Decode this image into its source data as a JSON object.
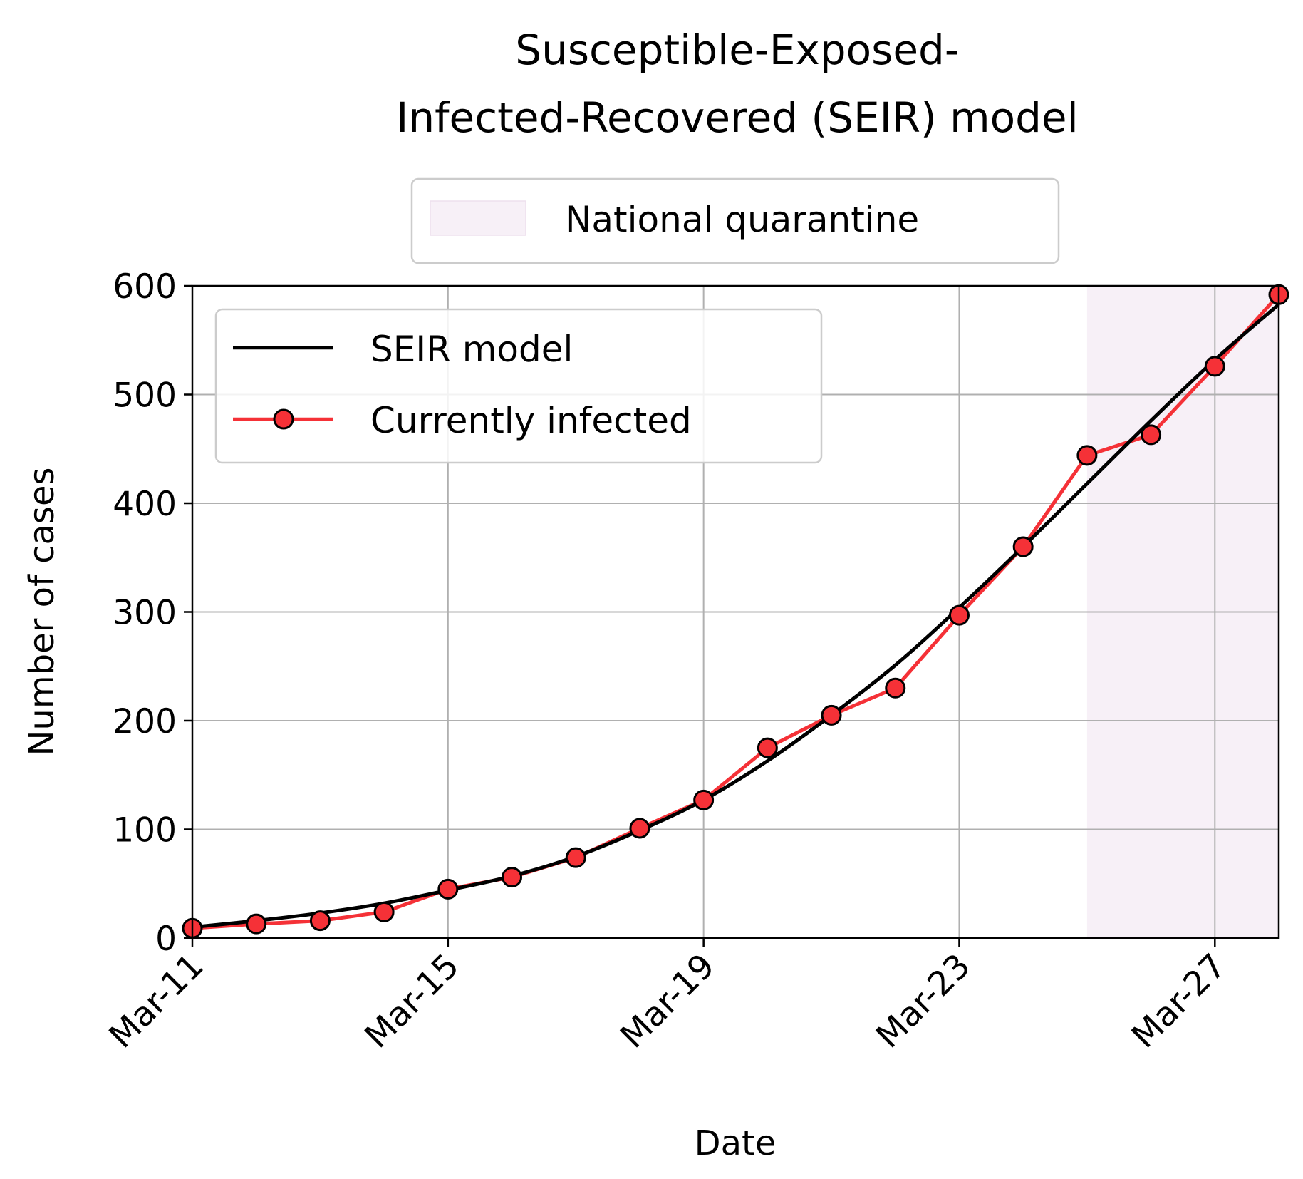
{
  "chart_data": {
    "type": "line",
    "title_line1": "Susceptible-Exposed-",
    "title_line2": "Infected-Recovered (SEIR) model",
    "xlabel": "Date",
    "ylabel": "Number of cases",
    "ylim": [
      0,
      600
    ],
    "yticks": [
      "0",
      "100",
      "200",
      "300",
      "400",
      "500",
      "600"
    ],
    "xlim": [
      "Mar-11",
      "Mar-28"
    ],
    "xticks": [
      "Mar-11",
      "Mar-15",
      "Mar-19",
      "Mar-23",
      "Mar-27"
    ],
    "grid": true,
    "legend_top": {
      "label": "National quarantine",
      "color": "#f7f0f7"
    },
    "legend_inner": {
      "placement": "upper-left",
      "entries": [
        "SEIR model",
        "Currently infected"
      ]
    },
    "shaded_region": {
      "label": "National quarantine",
      "start": "Mar-25",
      "end": "Mar-28",
      "color": "#f7f0f7"
    },
    "x": [
      "Mar-11",
      "Mar-12",
      "Mar-13",
      "Mar-14",
      "Mar-15",
      "Mar-16",
      "Mar-17",
      "Mar-18",
      "Mar-19",
      "Mar-20",
      "Mar-21",
      "Mar-22",
      "Mar-23",
      "Mar-24",
      "Mar-25",
      "Mar-26",
      "Mar-27",
      "Mar-28"
    ],
    "series": [
      {
        "name": "SEIR model",
        "color": "#000000",
        "marker": "none",
        "x": [
          "Mar-11",
          "Mar-12",
          "Mar-13",
          "Mar-14",
          "Mar-15",
          "Mar-16",
          "Mar-17",
          "Mar-18",
          "Mar-19",
          "Mar-20",
          "Mar-21",
          "Mar-22",
          "Mar-23",
          "Mar-24",
          "Mar-25",
          "Mar-26",
          "Mar-27",
          "Mar-28"
        ],
        "values": [
          10,
          16,
          23,
          32,
          44,
          57,
          75,
          99,
          127,
          163,
          205,
          251,
          304,
          360,
          418,
          476,
          532,
          583
        ]
      },
      {
        "name": "Currently infected",
        "color": "#f53137",
        "marker": "circle",
        "x": [
          "Mar-11",
          "Mar-12",
          "Mar-13",
          "Mar-14",
          "Mar-15",
          "Mar-16",
          "Mar-17",
          "Mar-18",
          "Mar-19",
          "Mar-20",
          "Mar-21",
          "Mar-22",
          "Mar-23",
          "Mar-24",
          "Mar-25",
          "Mar-26",
          "Mar-27",
          "Mar-28"
        ],
        "values": [
          9,
          13,
          16,
          24,
          45,
          56,
          74,
          101,
          127,
          175,
          205,
          230,
          297,
          360,
          444,
          463,
          526,
          592
        ]
      }
    ]
  }
}
